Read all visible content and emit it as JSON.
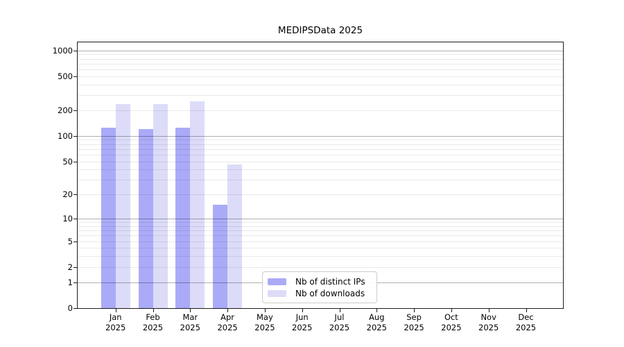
{
  "chart_data": {
    "type": "bar",
    "title": "MEDIPSData 2025",
    "months": [
      "Jan",
      "Feb",
      "Mar",
      "Apr",
      "May",
      "Jun",
      "Jul",
      "Aug",
      "Sep",
      "Oct",
      "Nov",
      "Dec"
    ],
    "year": "2025",
    "series": [
      {
        "name": "Nb of distinct IPs",
        "key": "distinct-ips",
        "color": "#aaaaf8",
        "values": [
          126,
          120,
          126,
          15,
          0,
          0,
          0,
          0,
          0,
          0,
          0,
          0
        ]
      },
      {
        "name": "Nb of downloads",
        "key": "downloads",
        "color": "#dcdcf9",
        "values": [
          238,
          238,
          255,
          46,
          0,
          0,
          0,
          0,
          0,
          0,
          0,
          0
        ]
      }
    ],
    "y_ticks": [
      0,
      1,
      2,
      5,
      10,
      20,
      50,
      100,
      200,
      500,
      1000
    ],
    "y_scale": "log10(1+y)",
    "ylim": [
      0,
      1240
    ],
    "grid": {
      "major": [
        1,
        10,
        100,
        1000
      ],
      "minor_multiples_per_decade": [
        2,
        3,
        4,
        5,
        6,
        7,
        8,
        9
      ]
    },
    "legend_position": "lower center",
    "xlabel": "",
    "ylabel": ""
  }
}
